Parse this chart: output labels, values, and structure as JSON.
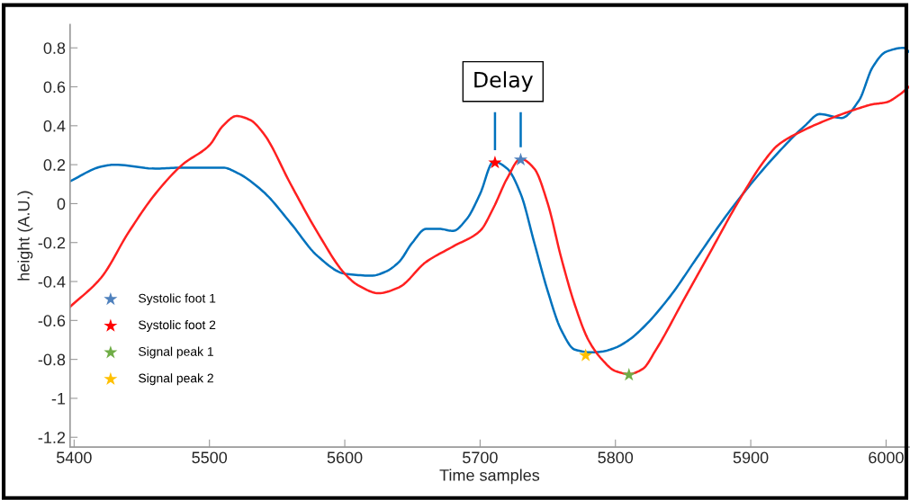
{
  "chart_data": {
    "type": "line",
    "xlabel": "Time samples",
    "ylabel": "height (A.U.)",
    "xlim": [
      5397,
      6017
    ],
    "xticks": [
      5400,
      5500,
      5600,
      5700,
      5800,
      5900,
      6000
    ],
    "ylim": [
      -1.25,
      0.92
    ],
    "yticks": [
      -1.2,
      -1,
      -0.8,
      -0.6,
      -0.4,
      -0.2,
      0,
      0.2,
      0.4,
      0.6,
      0.8
    ],
    "grid": false,
    "legend": "bottom left",
    "marker": "none",
    "line_style": "solid",
    "annotations": [
      "Delay"
    ],
    "series": [
      {
        "color": "#0072bd",
        "x": [
          5397,
          5420,
          5430,
          5460,
          5480,
          5510,
          5520,
          5540,
          5560,
          5580,
          5600,
          5620,
          5630,
          5640,
          5650,
          5660,
          5670,
          5680,
          5690,
          5700,
          5710,
          5720,
          5730,
          5740,
          5750,
          5760,
          5770,
          5783,
          5790,
          5800,
          5810,
          5820,
          5840,
          5860,
          5880,
          5900,
          5920,
          5940,
          5951,
          5967,
          5980,
          5990,
          6000,
          6013,
          6017
        ],
        "values": [
          0.115,
          0.19,
          0.2,
          0.18,
          0.185,
          0.185,
          0.16,
          0.06,
          -0.1,
          -0.27,
          -0.36,
          -0.37,
          -0.35,
          -0.3,
          -0.2,
          -0.13,
          -0.13,
          -0.14,
          -0.08,
          0.05,
          0.216,
          0.18,
          0.05,
          -0.2,
          -0.45,
          -0.65,
          -0.75,
          -0.764,
          -0.76,
          -0.74,
          -0.7,
          -0.64,
          -0.48,
          -0.28,
          -0.08,
          0.1,
          0.26,
          0.4,
          0.46,
          0.44,
          0.53,
          0.7,
          0.78,
          0.8,
          0.78
        ]
      },
      {
        "color": "#ff2020",
        "x": [
          5397,
          5420,
          5440,
          5460,
          5480,
          5500,
          5510,
          5520,
          5530,
          5540,
          5560,
          5580,
          5600,
          5610,
          5625,
          5640,
          5660,
          5680,
          5700,
          5710,
          5720,
          5730,
          5740,
          5750,
          5760,
          5770,
          5780,
          5790,
          5800,
          5810,
          5820,
          5830,
          5850,
          5870,
          5890,
          5910,
          5920,
          5940,
          5960,
          5980,
          5990,
          6000,
          6010,
          6017
        ],
        "values": [
          -0.53,
          -0.38,
          -0.15,
          0.05,
          0.2,
          0.3,
          0.4,
          0.45,
          0.43,
          0.36,
          0.1,
          -0.15,
          -0.36,
          -0.42,
          -0.46,
          -0.43,
          -0.3,
          -0.22,
          -0.14,
          -0.02,
          0.13,
          0.23,
          0.18,
          0.0,
          -0.28,
          -0.52,
          -0.7,
          -0.8,
          -0.86,
          -0.875,
          -0.85,
          -0.75,
          -0.5,
          -0.25,
          0.0,
          0.22,
          0.3,
          0.38,
          0.44,
          0.49,
          0.51,
          0.52,
          0.56,
          0.6
        ]
      },
      {
        "type": "scatter",
        "marker": "star",
        "name": "Systolic foot 1",
        "color": "#4f81bd",
        "x": [
          5730
        ],
        "values": [
          0.225
        ]
      },
      {
        "type": "scatter",
        "marker": "star",
        "name": "Systolic foot 2",
        "color": "#ff0000",
        "x": [
          5711
        ],
        "values": [
          0.21
        ]
      },
      {
        "type": "scatter",
        "marker": "star",
        "name": "Signal peak 1",
        "color": "#70ad47",
        "x": [
          5810
        ],
        "values": [
          -0.88
        ]
      },
      {
        "type": "scatter",
        "marker": "star",
        "name": "Signal peak 2",
        "color": "#ffc000",
        "x": [
          5778
        ],
        "values": [
          -0.78
        ]
      }
    ]
  }
}
